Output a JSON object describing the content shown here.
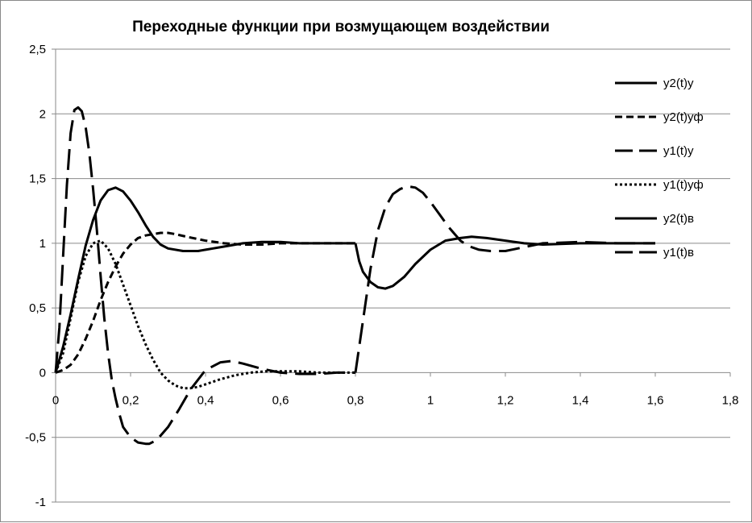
{
  "chart_data": {
    "type": "line",
    "title": "Переходные функции при возмущающем воздействии",
    "xlabel": "",
    "ylabel": "",
    "xlim": [
      0,
      1.8
    ],
    "ylim": [
      -1,
      2.5
    ],
    "x_ticks": [
      0,
      0.2,
      0.4,
      0.6,
      0.8,
      1,
      1.2,
      1.4,
      1.6,
      1.8
    ],
    "x_tick_labels": [
      "0",
      "0,2",
      "0,4",
      "0,6",
      "0,8",
      "1",
      "1,2",
      "1,4",
      "1,6",
      "1,8"
    ],
    "y_ticks": [
      -1,
      -0.5,
      0,
      0.5,
      1,
      1.5,
      2,
      2.5
    ],
    "y_tick_labels": [
      "-1",
      "-0,5",
      "0",
      "0,5",
      "1",
      "1,5",
      "2",
      "2,5"
    ],
    "grid": "horizontal",
    "legend_position": "right",
    "series": [
      {
        "name": "y2(t)y",
        "style": "solid",
        "x": [
          0,
          0.02,
          0.04,
          0.06,
          0.08,
          0.1,
          0.12,
          0.14,
          0.16,
          0.18,
          0.2,
          0.22,
          0.24,
          0.26,
          0.28,
          0.3,
          0.34,
          0.38,
          0.42,
          0.46,
          0.5,
          0.55,
          0.6,
          0.65,
          0.7,
          0.75,
          0.8
        ],
        "y": [
          0,
          0.2,
          0.45,
          0.72,
          0.98,
          1.18,
          1.33,
          1.41,
          1.43,
          1.4,
          1.33,
          1.24,
          1.14,
          1.05,
          0.99,
          0.96,
          0.94,
          0.94,
          0.96,
          0.98,
          1.0,
          1.01,
          1.01,
          1.0,
          1.0,
          1.0,
          1.0
        ]
      },
      {
        "name": "y2(t)уф",
        "style": "short-dash",
        "x": [
          0,
          0.02,
          0.04,
          0.06,
          0.08,
          0.1,
          0.12,
          0.14,
          0.16,
          0.18,
          0.2,
          0.22,
          0.24,
          0.26,
          0.28,
          0.3,
          0.32,
          0.35,
          0.4,
          0.45,
          0.5,
          0.55,
          0.6,
          0.65,
          0.7,
          0.75,
          0.8
        ],
        "y": [
          0,
          0.02,
          0.06,
          0.14,
          0.26,
          0.4,
          0.56,
          0.7,
          0.82,
          0.92,
          0.99,
          1.04,
          1.06,
          1.07,
          1.08,
          1.08,
          1.07,
          1.05,
          1.02,
          1.0,
          0.99,
          0.99,
          1.0,
          1.0,
          1.0,
          1.0,
          1.0
        ]
      },
      {
        "name": "y1(t)у",
        "style": "long-dash",
        "x": [
          0,
          0.01,
          0.02,
          0.03,
          0.04,
          0.05,
          0.06,
          0.07,
          0.08,
          0.09,
          0.1,
          0.11,
          0.12,
          0.13,
          0.14,
          0.15,
          0.16,
          0.17,
          0.18,
          0.2,
          0.22,
          0.24,
          0.25,
          0.27,
          0.3,
          0.33,
          0.36,
          0.4,
          0.44,
          0.47,
          0.5,
          0.55,
          0.6,
          0.65,
          0.7,
          0.75,
          0.8
        ],
        "y": [
          0,
          0.35,
          0.9,
          1.45,
          1.85,
          2.03,
          2.05,
          2.02,
          1.9,
          1.7,
          1.42,
          1.1,
          0.75,
          0.42,
          0.15,
          -0.06,
          -0.2,
          -0.32,
          -0.42,
          -0.5,
          -0.54,
          -0.55,
          -0.55,
          -0.52,
          -0.42,
          -0.28,
          -0.13,
          0.02,
          0.08,
          0.09,
          0.07,
          0.03,
          0.0,
          -0.01,
          -0.01,
          0.0,
          0.0
        ]
      },
      {
        "name": "y1(t)уф",
        "style": "dotted",
        "x": [
          0,
          0.02,
          0.04,
          0.06,
          0.08,
          0.1,
          0.12,
          0.14,
          0.16,
          0.18,
          0.2,
          0.22,
          0.24,
          0.26,
          0.28,
          0.3,
          0.32,
          0.34,
          0.36,
          0.38,
          0.4,
          0.44,
          0.48,
          0.52,
          0.56,
          0.6,
          0.65,
          0.7,
          0.75,
          0.8
        ],
        "y": [
          0,
          0.15,
          0.42,
          0.7,
          0.9,
          1.0,
          1.02,
          0.96,
          0.84,
          0.68,
          0.52,
          0.36,
          0.22,
          0.1,
          0.0,
          -0.06,
          -0.1,
          -0.12,
          -0.12,
          -0.11,
          -0.09,
          -0.05,
          -0.02,
          0.0,
          0.01,
          0.01,
          0.01,
          0.0,
          0.0,
          0.0
        ]
      },
      {
        "name": "y2(t)в",
        "style": "solid",
        "x": [
          0.8,
          0.81,
          0.82,
          0.84,
          0.86,
          0.88,
          0.9,
          0.93,
          0.96,
          1.0,
          1.04,
          1.08,
          1.11,
          1.15,
          1.2,
          1.25,
          1.3,
          1.4,
          1.5,
          1.6
        ],
        "y": [
          1.0,
          0.86,
          0.78,
          0.7,
          0.66,
          0.65,
          0.67,
          0.74,
          0.84,
          0.95,
          1.02,
          1.04,
          1.05,
          1.04,
          1.02,
          1.0,
          0.99,
          1.0,
          1.0,
          1.0
        ]
      },
      {
        "name": "y1(t)в",
        "style": "long-dash",
        "x": [
          0.8,
          0.82,
          0.84,
          0.86,
          0.88,
          0.9,
          0.92,
          0.94,
          0.96,
          0.98,
          1.0,
          1.02,
          1.05,
          1.08,
          1.1,
          1.13,
          1.16,
          1.2,
          1.25,
          1.3,
          1.4,
          1.5,
          1.6
        ],
        "y": [
          0.0,
          0.4,
          0.8,
          1.1,
          1.28,
          1.38,
          1.42,
          1.44,
          1.43,
          1.39,
          1.32,
          1.24,
          1.12,
          1.02,
          0.98,
          0.95,
          0.94,
          0.94,
          0.97,
          1.0,
          1.01,
          1.0,
          1.0
        ]
      }
    ]
  }
}
